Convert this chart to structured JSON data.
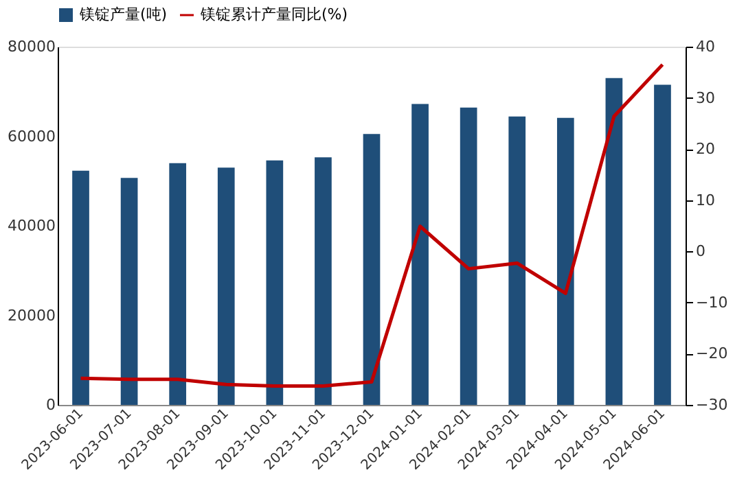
{
  "chart_data": {
    "type": "bar",
    "categories": [
      "2023-06-01",
      "2023-07-01",
      "2023-08-01",
      "2023-09-01",
      "2023-10-01",
      "2023-11-01",
      "2023-12-01",
      "2024-01-01",
      "2024-02-01",
      "2024-03-01",
      "2024-04-01",
      "2024-05-01",
      "2024-06-01"
    ],
    "series": [
      {
        "name": "镁锭产量(吨)",
        "color": "#1f4e79",
        "values": [
          52300,
          50700,
          54000,
          53000,
          54600,
          55300,
          60500,
          67200,
          66400,
          64400,
          64100,
          73000,
          71500
        ]
      },
      {
        "name": "镁锭累计产量同比(%)",
        "type": "line",
        "axis": "y2",
        "color": "#c00000",
        "values": [
          -24.8,
          -25,
          -25,
          -26,
          -26.3,
          -26.3,
          -25.5,
          4.9,
          -3.4,
          -2.3,
          -8.2,
          26.4,
          36.5
        ]
      }
    ],
    "ylim": [
      0,
      80000
    ],
    "yticks": [
      0,
      20000,
      40000,
      60000,
      80000
    ],
    "y2lim": [
      -30,
      40
    ],
    "y2ticks": [
      -30,
      -20,
      -10,
      0,
      10,
      20,
      30,
      40
    ],
    "grid": false,
    "legend": "top"
  }
}
